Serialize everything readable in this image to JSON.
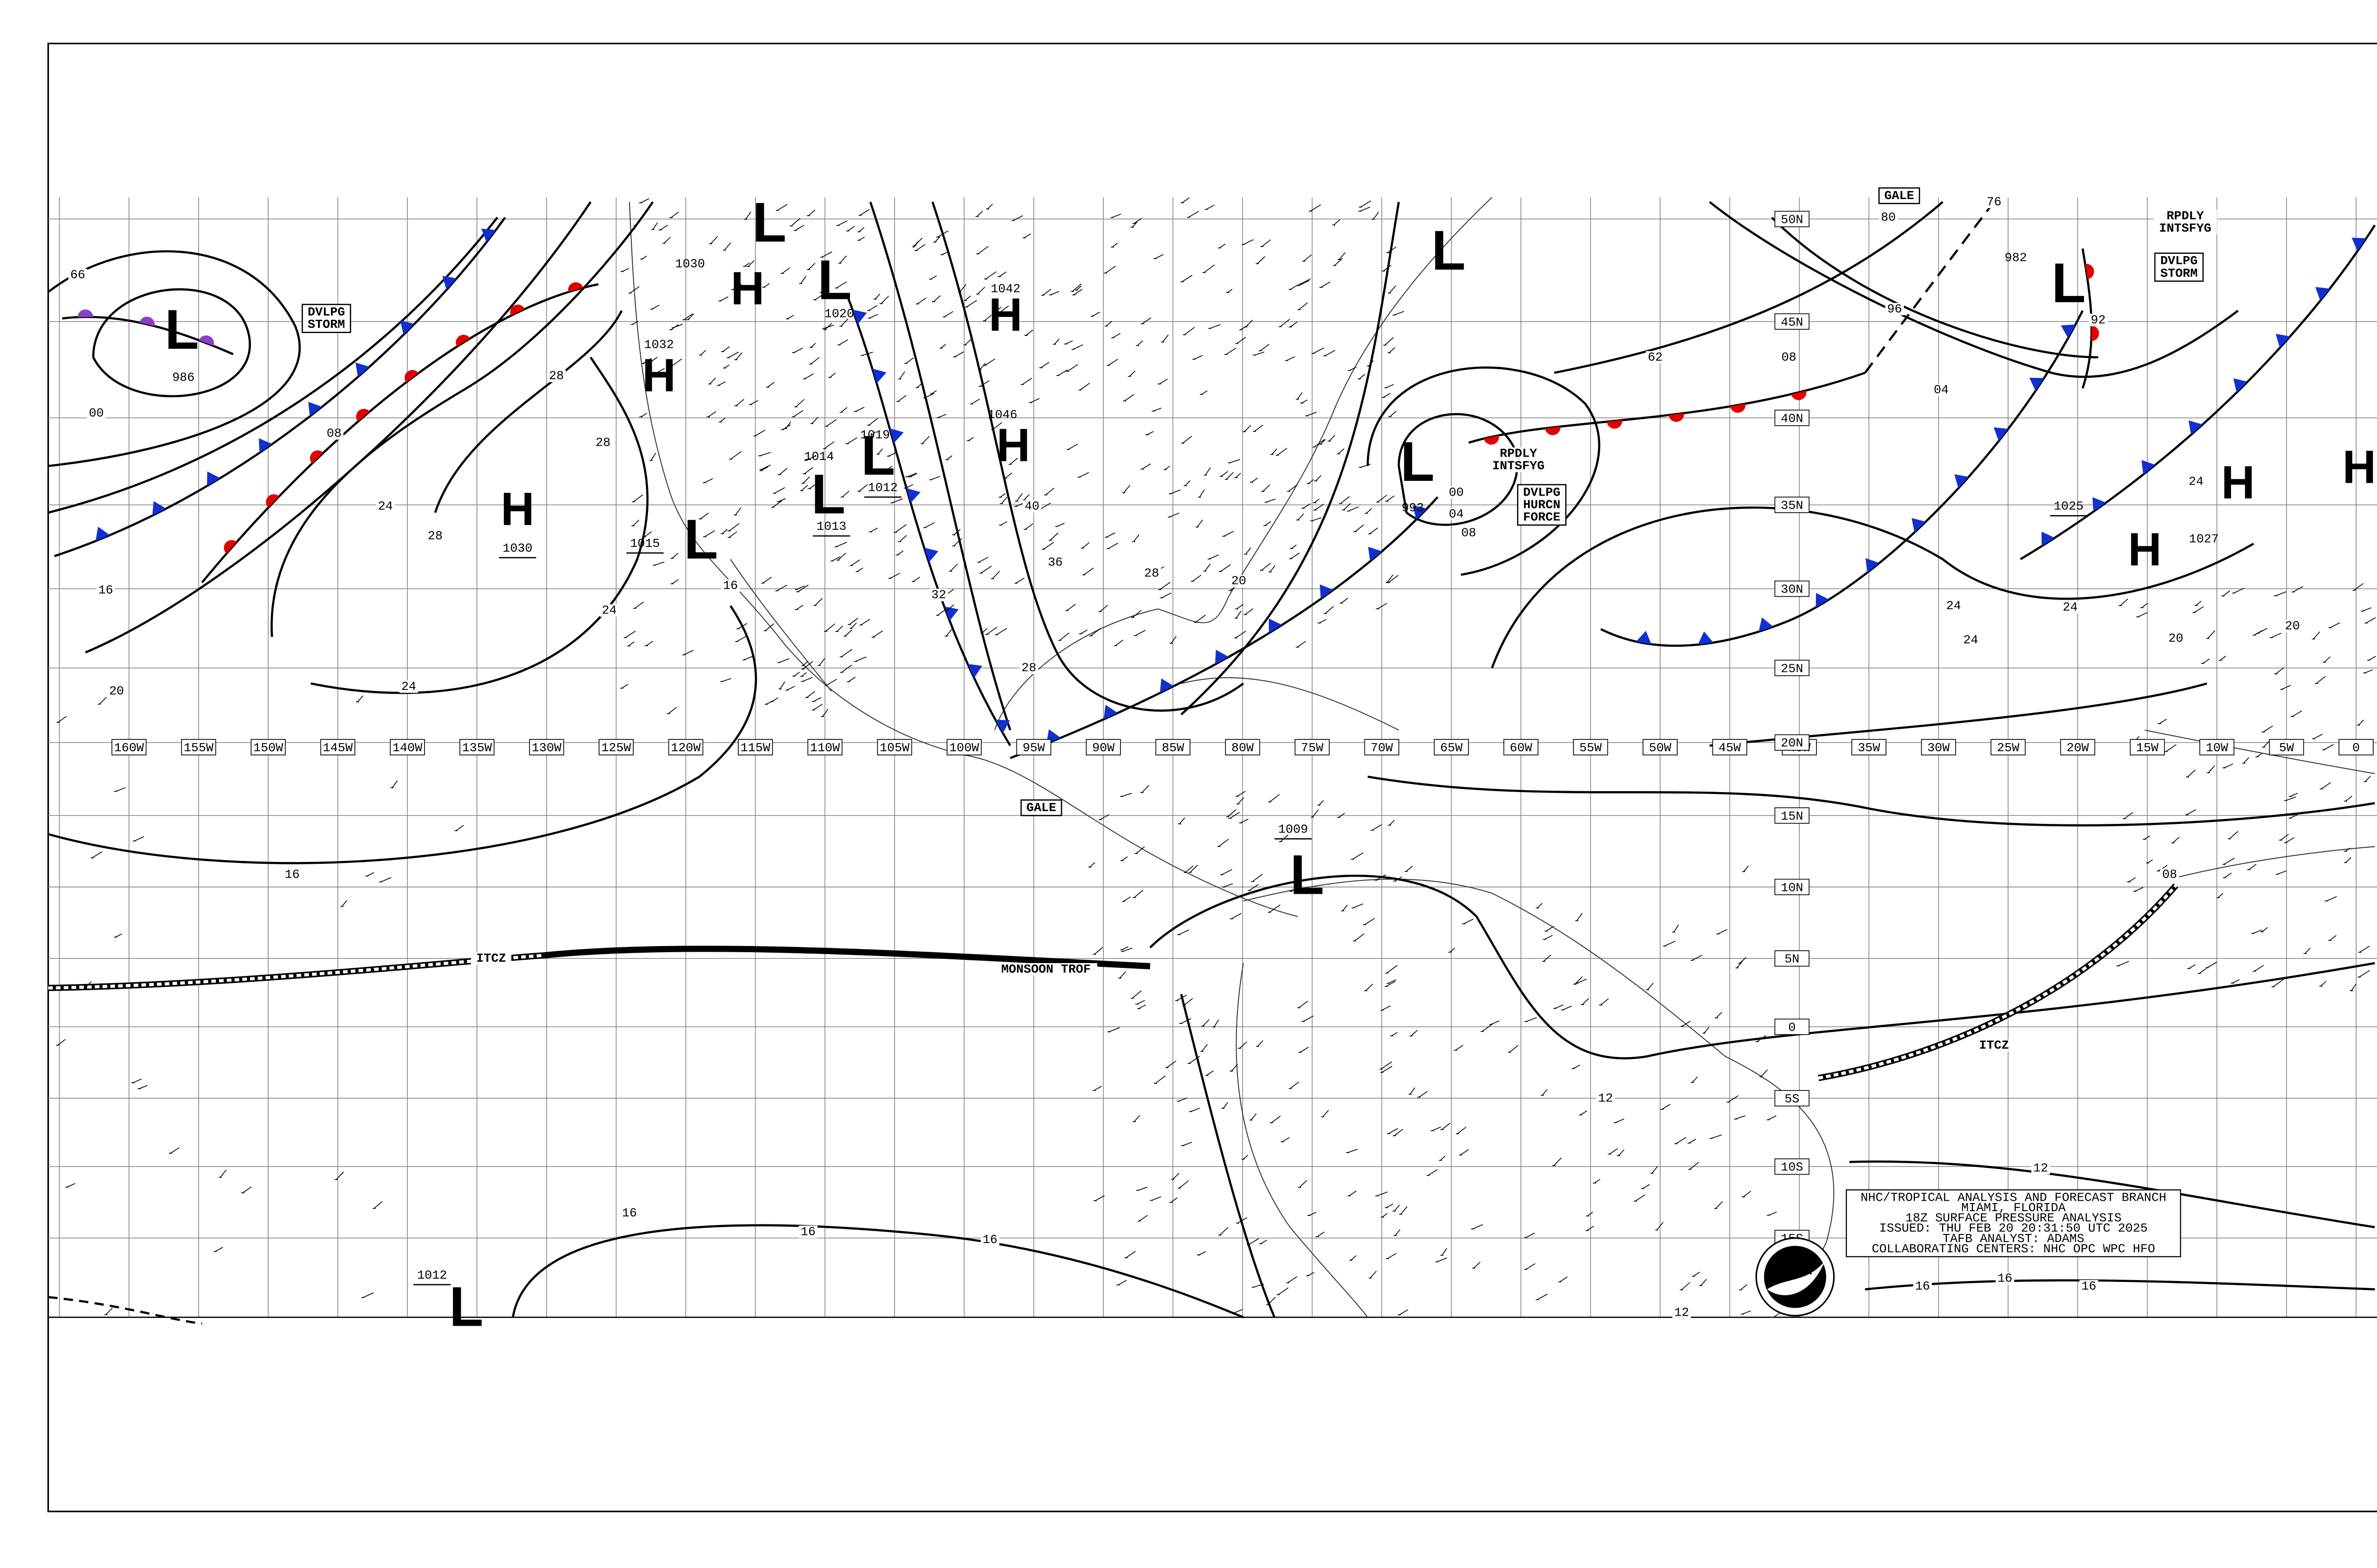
{
  "lon_labels": [
    "160W",
    "155W",
    "150W",
    "145W",
    "140W",
    "135W",
    "130W",
    "125W",
    "120W",
    "115W",
    "110W",
    "105W",
    "100W",
    "95W",
    "90W",
    "85W",
    "80W",
    "75W",
    "70W",
    "65W",
    "60W",
    "55W",
    "50W",
    "45W",
    "40W",
    "35W",
    "30W",
    "25W",
    "20W",
    "15W",
    "10W",
    "5W",
    "0"
  ],
  "lat_labels": [
    "50N",
    "45N",
    "40N",
    "35N",
    "30N",
    "25N",
    "20N",
    "15N",
    "10N",
    "5N",
    "0",
    "5S",
    "10S",
    "15S"
  ],
  "centers": [
    {
      "symbol": "L",
      "color": "#e00000"
    },
    {
      "symbol": "H",
      "color": "#1030d0"
    },
    {
      "symbol": "H",
      "color": "#1030d0"
    },
    {
      "symbol": "H",
      "color": "#1030d0"
    },
    {
      "symbol": "L",
      "color": "#e00000"
    },
    {
      "symbol": "L",
      "color": "#e00000"
    },
    {
      "symbol": "L",
      "color": "#e00000"
    },
    {
      "symbol": "H",
      "color": "#1030d0"
    },
    {
      "symbol": "H",
      "color": "#1030d0"
    },
    {
      "symbol": "L",
      "color": "#e00000"
    },
    {
      "symbol": "L",
      "color": "#e00000"
    },
    {
      "symbol": "L",
      "color": "#e00000"
    },
    {
      "symbol": "L",
      "color": "#e00000"
    },
    {
      "symbol": "L",
      "color": "#e00000"
    },
    {
      "symbol": "H",
      "color": "#1030d0"
    },
    {
      "symbol": "H",
      "color": "#1030d0"
    },
    {
      "symbol": "H",
      "color": "#1030d0"
    },
    {
      "symbol": "L",
      "color": "#e00000"
    },
    {
      "symbol": "L",
      "color": "#000000"
    }
  ],
  "pressure_labels": [
    "986",
    "1030",
    "1032",
    "1030",
    "1015",
    "1020",
    "1042",
    "1046",
    "1014",
    "1019",
    "1012",
    "1013",
    "993",
    "982",
    "1025",
    "1027",
    "1009",
    "1012"
  ],
  "isobar_labels": [
    "66",
    "00",
    "16",
    "20",
    "08",
    "24",
    "28",
    "28",
    "28",
    "24",
    "24",
    "16",
    "16",
    "16",
    "16",
    "16",
    "40",
    "36",
    "28",
    "32",
    "28",
    "20",
    "62",
    "08",
    "04",
    "96",
    "80",
    "76",
    "92",
    "24",
    "24",
    "24",
    "20",
    "20",
    "24",
    "00",
    "04",
    "08",
    "12",
    "12",
    "12",
    "16",
    "16",
    "16",
    "12",
    "08"
  ],
  "annotations": [
    [
      "DVLPG",
      "STORM"
    ],
    [
      "RPDLY",
      "INTSFYG"
    ],
    [
      "DVLPG",
      "HURCN",
      "FORCE"
    ],
    [
      "RPDLY",
      "INTSFYG"
    ],
    [
      "DVLPG",
      "STORM"
    ],
    [
      "GALE"
    ],
    [
      "GALE"
    ],
    [
      "ITCZ"
    ],
    [
      "ITCZ"
    ],
    [
      "MONSOON TROF"
    ]
  ],
  "info_box": [
    "NHC/TROPICAL ANALYSIS AND FORECAST BRANCH",
    "MIAMI, FLORIDA",
    "18Z SURFACE PRESSURE ANALYSIS",
    "ISSUED: THU FEB 20 20:31:50 UTC 2025",
    "TAFB ANALYST: ADAMS",
    "COLLABORATING CENTERS: NHC OPC WPC HFO"
  ],
  "logo": "NOAA"
}
